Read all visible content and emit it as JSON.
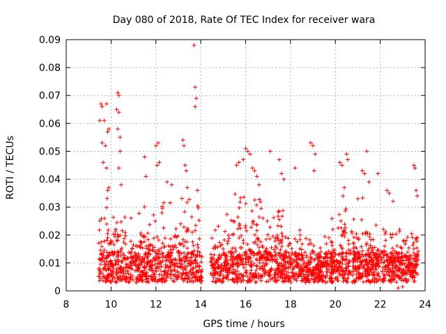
{
  "chart_data": {
    "type": "scatter",
    "title": "Day 080 of 2018, Rate Of TEC Index for receiver wara",
    "xlabel": "GPS time / hours",
    "ylabel": "ROTI / TECUs",
    "xlim": [
      8,
      24
    ],
    "ylim": [
      0,
      0.09
    ],
    "xticks": [
      8,
      10,
      12,
      14,
      16,
      18,
      20,
      22,
      24
    ],
    "yticks": [
      0,
      0.01,
      0.02,
      0.03,
      0.04,
      0.05,
      0.06,
      0.07,
      0.08,
      0.09
    ],
    "xtick_labels": [
      "8",
      "10",
      "12",
      "14",
      "16",
      "18",
      "20",
      "22",
      "24"
    ],
    "ytick_labels": [
      "0",
      "0.01",
      "0.02",
      "0.03",
      "0.04",
      "0.05",
      "0.06",
      "0.07",
      "0.08",
      "0.09"
    ],
    "grid": true,
    "marker": "+",
    "color": "#ff0000",
    "series": [
      {
        "name": "ROTI",
        "note": "representative sample of dense point cloud between 9.4 h and 23.8 h (gap near 14.1-14.4 h)",
        "points": [
          [
            9.5,
            0.061
          ],
          [
            9.55,
            0.067
          ],
          [
            9.6,
            0.066
          ],
          [
            9.7,
            0.061
          ],
          [
            9.8,
            0.067
          ],
          [
            9.85,
            0.057
          ],
          [
            9.9,
            0.058
          ],
          [
            9.6,
            0.053
          ],
          [
            9.75,
            0.052
          ],
          [
            9.65,
            0.046
          ],
          [
            9.8,
            0.044
          ],
          [
            9.9,
            0.037
          ],
          [
            9.85,
            0.036
          ],
          [
            10.3,
            0.071
          ],
          [
            10.35,
            0.07
          ],
          [
            10.25,
            0.065
          ],
          [
            10.35,
            0.064
          ],
          [
            10.3,
            0.058
          ],
          [
            10.4,
            0.055
          ],
          [
            10.4,
            0.05
          ],
          [
            10.35,
            0.044
          ],
          [
            10.45,
            0.038
          ],
          [
            11.5,
            0.048
          ],
          [
            11.55,
            0.041
          ],
          [
            12.0,
            0.052
          ],
          [
            12.1,
            0.053
          ],
          [
            12.15,
            0.046
          ],
          [
            12.05,
            0.045
          ],
          [
            12.5,
            0.039
          ],
          [
            12.7,
            0.038
          ],
          [
            13.2,
            0.054
          ],
          [
            13.25,
            0.052
          ],
          [
            13.3,
            0.045
          ],
          [
            13.35,
            0.043
          ],
          [
            13.4,
            0.037
          ],
          [
            13.7,
            0.088
          ],
          [
            13.75,
            0.073
          ],
          [
            13.8,
            0.069
          ],
          [
            13.75,
            0.066
          ],
          [
            13.85,
            0.036
          ],
          [
            15.6,
            0.045
          ],
          [
            15.7,
            0.046
          ],
          [
            15.9,
            0.047
          ],
          [
            16.0,
            0.051
          ],
          [
            16.1,
            0.05
          ],
          [
            16.2,
            0.049
          ],
          [
            16.3,
            0.044
          ],
          [
            16.4,
            0.043
          ],
          [
            16.5,
            0.041
          ],
          [
            16.6,
            0.038
          ],
          [
            17.1,
            0.05
          ],
          [
            17.5,
            0.047
          ],
          [
            17.6,
            0.042
          ],
          [
            17.7,
            0.04
          ],
          [
            18.2,
            0.044
          ],
          [
            18.9,
            0.053
          ],
          [
            19.0,
            0.052
          ],
          [
            19.1,
            0.049
          ],
          [
            19.05,
            0.043
          ],
          [
            20.2,
            0.046
          ],
          [
            20.3,
            0.045
          ],
          [
            20.5,
            0.049
          ],
          [
            20.55,
            0.047
          ],
          [
            20.4,
            0.037
          ],
          [
            21.2,
            0.043
          ],
          [
            21.3,
            0.042
          ],
          [
            21.4,
            0.05
          ],
          [
            21.5,
            0.039
          ],
          [
            21.9,
            0.042
          ],
          [
            22.3,
            0.036
          ],
          [
            22.4,
            0.035
          ],
          [
            23.5,
            0.045
          ],
          [
            23.55,
            0.044
          ],
          [
            23.6,
            0.036
          ],
          [
            23.65,
            0.034
          ],
          [
            22.8,
            0.001
          ],
          [
            23.0,
            0.0015
          ]
        ],
        "density_profile": [
          [
            9.45,
            0.024
          ],
          [
            9.6,
            0.027
          ],
          [
            9.8,
            0.03
          ],
          [
            10.0,
            0.035
          ],
          [
            10.2,
            0.032
          ],
          [
            10.4,
            0.031
          ],
          [
            10.6,
            0.025
          ],
          [
            10.8,
            0.024
          ],
          [
            11.0,
            0.027
          ],
          [
            11.2,
            0.024
          ],
          [
            11.4,
            0.029
          ],
          [
            11.6,
            0.027
          ],
          [
            11.8,
            0.029
          ],
          [
            12.0,
            0.032
          ],
          [
            12.2,
            0.028
          ],
          [
            12.4,
            0.029
          ],
          [
            12.6,
            0.028
          ],
          [
            12.8,
            0.031
          ],
          [
            13.0,
            0.034
          ],
          [
            13.2,
            0.035
          ],
          [
            13.4,
            0.033
          ],
          [
            13.6,
            0.03
          ],
          [
            13.8,
            0.032
          ],
          [
            14.0,
            0.021
          ],
          [
            14.5,
            0.02
          ],
          [
            14.7,
            0.024
          ],
          [
            14.9,
            0.025
          ],
          [
            15.1,
            0.027
          ],
          [
            15.3,
            0.03
          ],
          [
            15.5,
            0.031
          ],
          [
            15.7,
            0.036
          ],
          [
            15.9,
            0.038
          ],
          [
            16.1,
            0.037
          ],
          [
            16.3,
            0.038
          ],
          [
            16.5,
            0.036
          ],
          [
            16.7,
            0.028
          ],
          [
            16.9,
            0.022
          ],
          [
            17.1,
            0.022
          ],
          [
            17.3,
            0.026
          ],
          [
            17.5,
            0.03
          ],
          [
            17.7,
            0.03
          ],
          [
            17.9,
            0.027
          ],
          [
            18.1,
            0.025
          ],
          [
            18.3,
            0.022
          ],
          [
            18.5,
            0.024
          ],
          [
            18.7,
            0.017
          ],
          [
            18.9,
            0.015
          ],
          [
            19.1,
            0.013
          ],
          [
            19.3,
            0.014
          ],
          [
            19.5,
            0.017
          ],
          [
            19.7,
            0.02
          ],
          [
            19.9,
            0.026
          ],
          [
            20.1,
            0.028
          ],
          [
            20.3,
            0.033
          ],
          [
            20.5,
            0.032
          ],
          [
            20.7,
            0.031
          ],
          [
            20.9,
            0.029
          ],
          [
            21.1,
            0.031
          ],
          [
            21.3,
            0.03
          ],
          [
            21.5,
            0.032
          ],
          [
            21.7,
            0.026
          ],
          [
            21.9,
            0.025
          ],
          [
            22.1,
            0.024
          ],
          [
            22.3,
            0.026
          ],
          [
            22.5,
            0.03
          ],
          [
            22.7,
            0.028
          ],
          [
            22.9,
            0.018
          ],
          [
            23.1,
            0.015
          ],
          [
            23.3,
            0.022
          ],
          [
            23.5,
            0.025
          ],
          [
            23.7,
            0.02
          ]
        ]
      }
    ]
  }
}
